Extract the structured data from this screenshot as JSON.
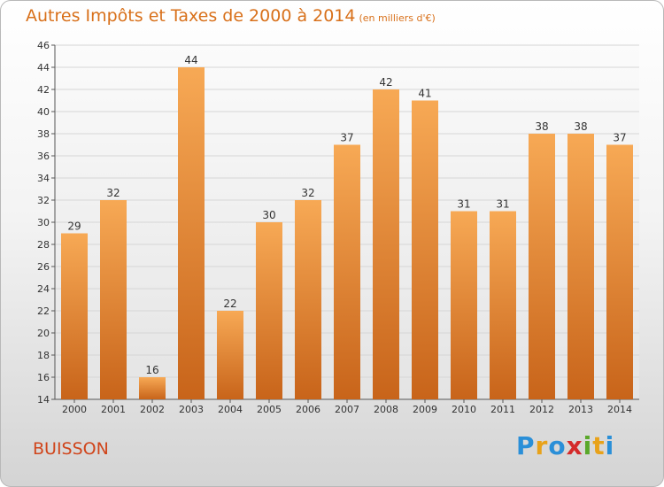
{
  "title": "Autres Impôts et Taxes de 2000 à 2014",
  "unit": "(en milliers d'€)",
  "town": "BUISSON",
  "logo": "Proxiti",
  "colors": {
    "bar_top": "#f6a650",
    "bar_bottom": "#c9661a",
    "title": "#d8701a",
    "town": "#d0451b"
  },
  "chart_data": {
    "type": "bar",
    "title": "Autres Impôts et Taxes de 2000 à 2014",
    "subtitle": "(en milliers d'€)",
    "categories": [
      "2000",
      "2001",
      "2002",
      "2003",
      "2004",
      "2005",
      "2006",
      "2007",
      "2008",
      "2009",
      "2010",
      "2011",
      "2012",
      "2013",
      "2014"
    ],
    "values": [
      29,
      32,
      16,
      44,
      22,
      30,
      32,
      37,
      42,
      41,
      31,
      31,
      38,
      38,
      37
    ],
    "ylim": [
      14,
      46
    ],
    "yticks": [
      14,
      16,
      18,
      20,
      22,
      24,
      26,
      28,
      30,
      32,
      34,
      36,
      38,
      40,
      42,
      44,
      46
    ],
    "grid": true,
    "xlabel": "",
    "ylabel": ""
  }
}
